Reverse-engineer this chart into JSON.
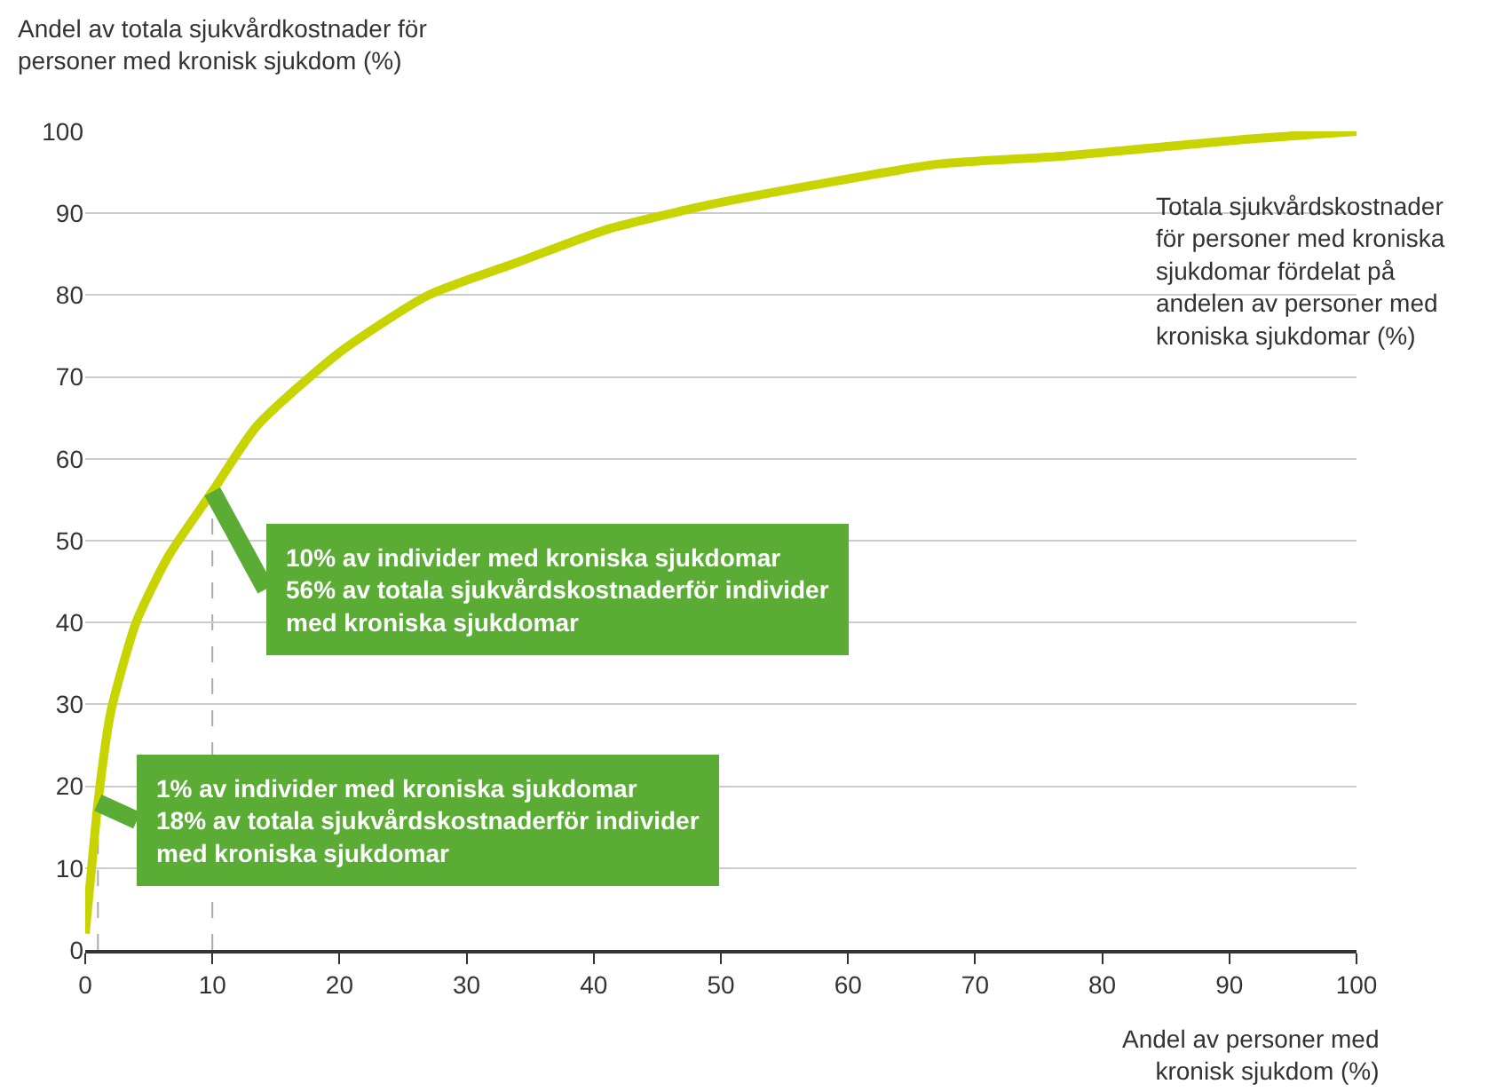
{
  "chart_data": {
    "type": "line",
    "xlabel": "Andel av personer med\nkronisk sjukdom (%)",
    "ylabel": "Andel av totala sjukvårdkostnader för\npersoner med kronisk sjukdom (%)",
    "x": [
      0,
      0.5,
      1,
      2,
      4,
      6.5,
      10,
      13.5,
      20,
      27,
      34,
      41,
      49,
      57.5,
      67,
      77,
      91,
      100
    ],
    "series": [
      {
        "color": "#c8d400",
        "values": [
          2,
          10,
          18,
          29,
          40,
          48,
          56,
          64,
          73,
          80,
          84,
          88,
          91,
          93.5,
          96,
          97,
          99,
          100
        ]
      }
    ],
    "xlim": [
      0,
      100
    ],
    "xticks": [
      0,
      10,
      20,
      30,
      40,
      50,
      60,
      70,
      80,
      90,
      100
    ],
    "ylim": [
      0,
      100
    ],
    "yticks": [
      0,
      10,
      20,
      30,
      40,
      50,
      60,
      70,
      80,
      90,
      100
    ],
    "ref_lines": [
      {
        "axis": "x",
        "value": 1,
        "color": "#aaaaaa",
        "line_style": "dashed"
      },
      {
        "axis": "x",
        "value": 10,
        "color": "#aaaaaa",
        "line_style": "dashed"
      }
    ],
    "grid": "y",
    "marker": "none",
    "line_style": "solid",
    "annotations": [
      {
        "text": "1% av individer med kroniska sjukdomar\n18% av totala sjukvårdskostnaderför individer\nmed kroniska sjukdomar",
        "x": 1,
        "y": 18
      },
      {
        "text": "10% av individer med kroniska sjukdomar\n56% av totala sjukvårdskostnaderför individer\nmed kroniska sjukdomar",
        "x": 10,
        "y": 56
      },
      "Totala sjukvårdskostnader\nför personer med kroniska\nsjukdomar fördelat på\nandelen av personer med\nkroniska sjukdomar (%)"
    ]
  }
}
